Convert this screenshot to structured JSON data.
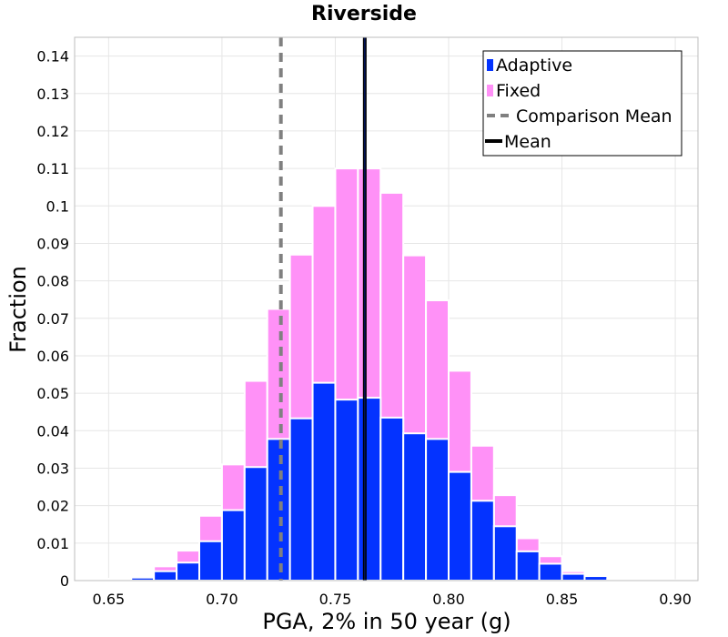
{
  "chart_data": {
    "type": "bar",
    "title": "Riverside",
    "xlabel": "PGA, 2% in 50 year (g)",
    "ylabel": "Fraction",
    "xlim": [
      0.635,
      0.91
    ],
    "ylim": [
      0,
      0.145
    ],
    "x_ticks": [
      "0.65",
      "0.70",
      "0.75",
      "0.80",
      "0.85",
      "0.90"
    ],
    "y_ticks": [
      "0",
      "0.01",
      "0.02",
      "0.03",
      "0.04",
      "0.05",
      "0.06",
      "0.07",
      "0.08",
      "0.09",
      "0.1",
      "0.11",
      "0.12",
      "0.13",
      "0.14"
    ],
    "grid": true,
    "legend_position": "top-right",
    "bin_width": 0.01,
    "bin_centers": [
      0.645,
      0.655,
      0.665,
      0.675,
      0.685,
      0.695,
      0.705,
      0.715,
      0.725,
      0.735,
      0.745,
      0.755,
      0.765,
      0.775,
      0.785,
      0.795,
      0.805,
      0.815,
      0.825,
      0.835,
      0.845,
      0.855,
      0.865,
      0.875,
      0.885,
      0.895
    ],
    "series": [
      {
        "name": "Fixed",
        "color": "#ff91f7",
        "values": [
          0.0002,
          0.0005,
          0.001,
          0.0038,
          0.008,
          0.0173,
          0.031,
          0.0533,
          0.0725,
          0.087,
          0.1,
          0.11,
          0.11,
          0.1035,
          0.0868,
          0.0748,
          0.056,
          0.036,
          0.0228,
          0.0113,
          0.0065,
          0.0025,
          0.0013,
          0.0006,
          0.0003,
          0.0001
        ]
      },
      {
        "name": "Adaptive",
        "color": "#0433ff",
        "values": [
          0.0002,
          0.0004,
          0.0008,
          0.0025,
          0.0048,
          0.0105,
          0.0188,
          0.0303,
          0.0378,
          0.0433,
          0.0528,
          0.0483,
          0.0488,
          0.0435,
          0.0393,
          0.0378,
          0.029,
          0.0213,
          0.0145,
          0.0078,
          0.0045,
          0.0018,
          0.0012,
          0.0004,
          0.0002,
          0.0001
        ]
      }
    ],
    "comparison_mean": {
      "name": "Comparison Mean",
      "x": 0.726,
      "color": "#808080"
    },
    "mean": {
      "name": "Mean",
      "x": 0.763,
      "color": "#000000"
    },
    "legend": [
      "Adaptive",
      "Fixed",
      "Comparison Mean",
      "Mean"
    ]
  }
}
